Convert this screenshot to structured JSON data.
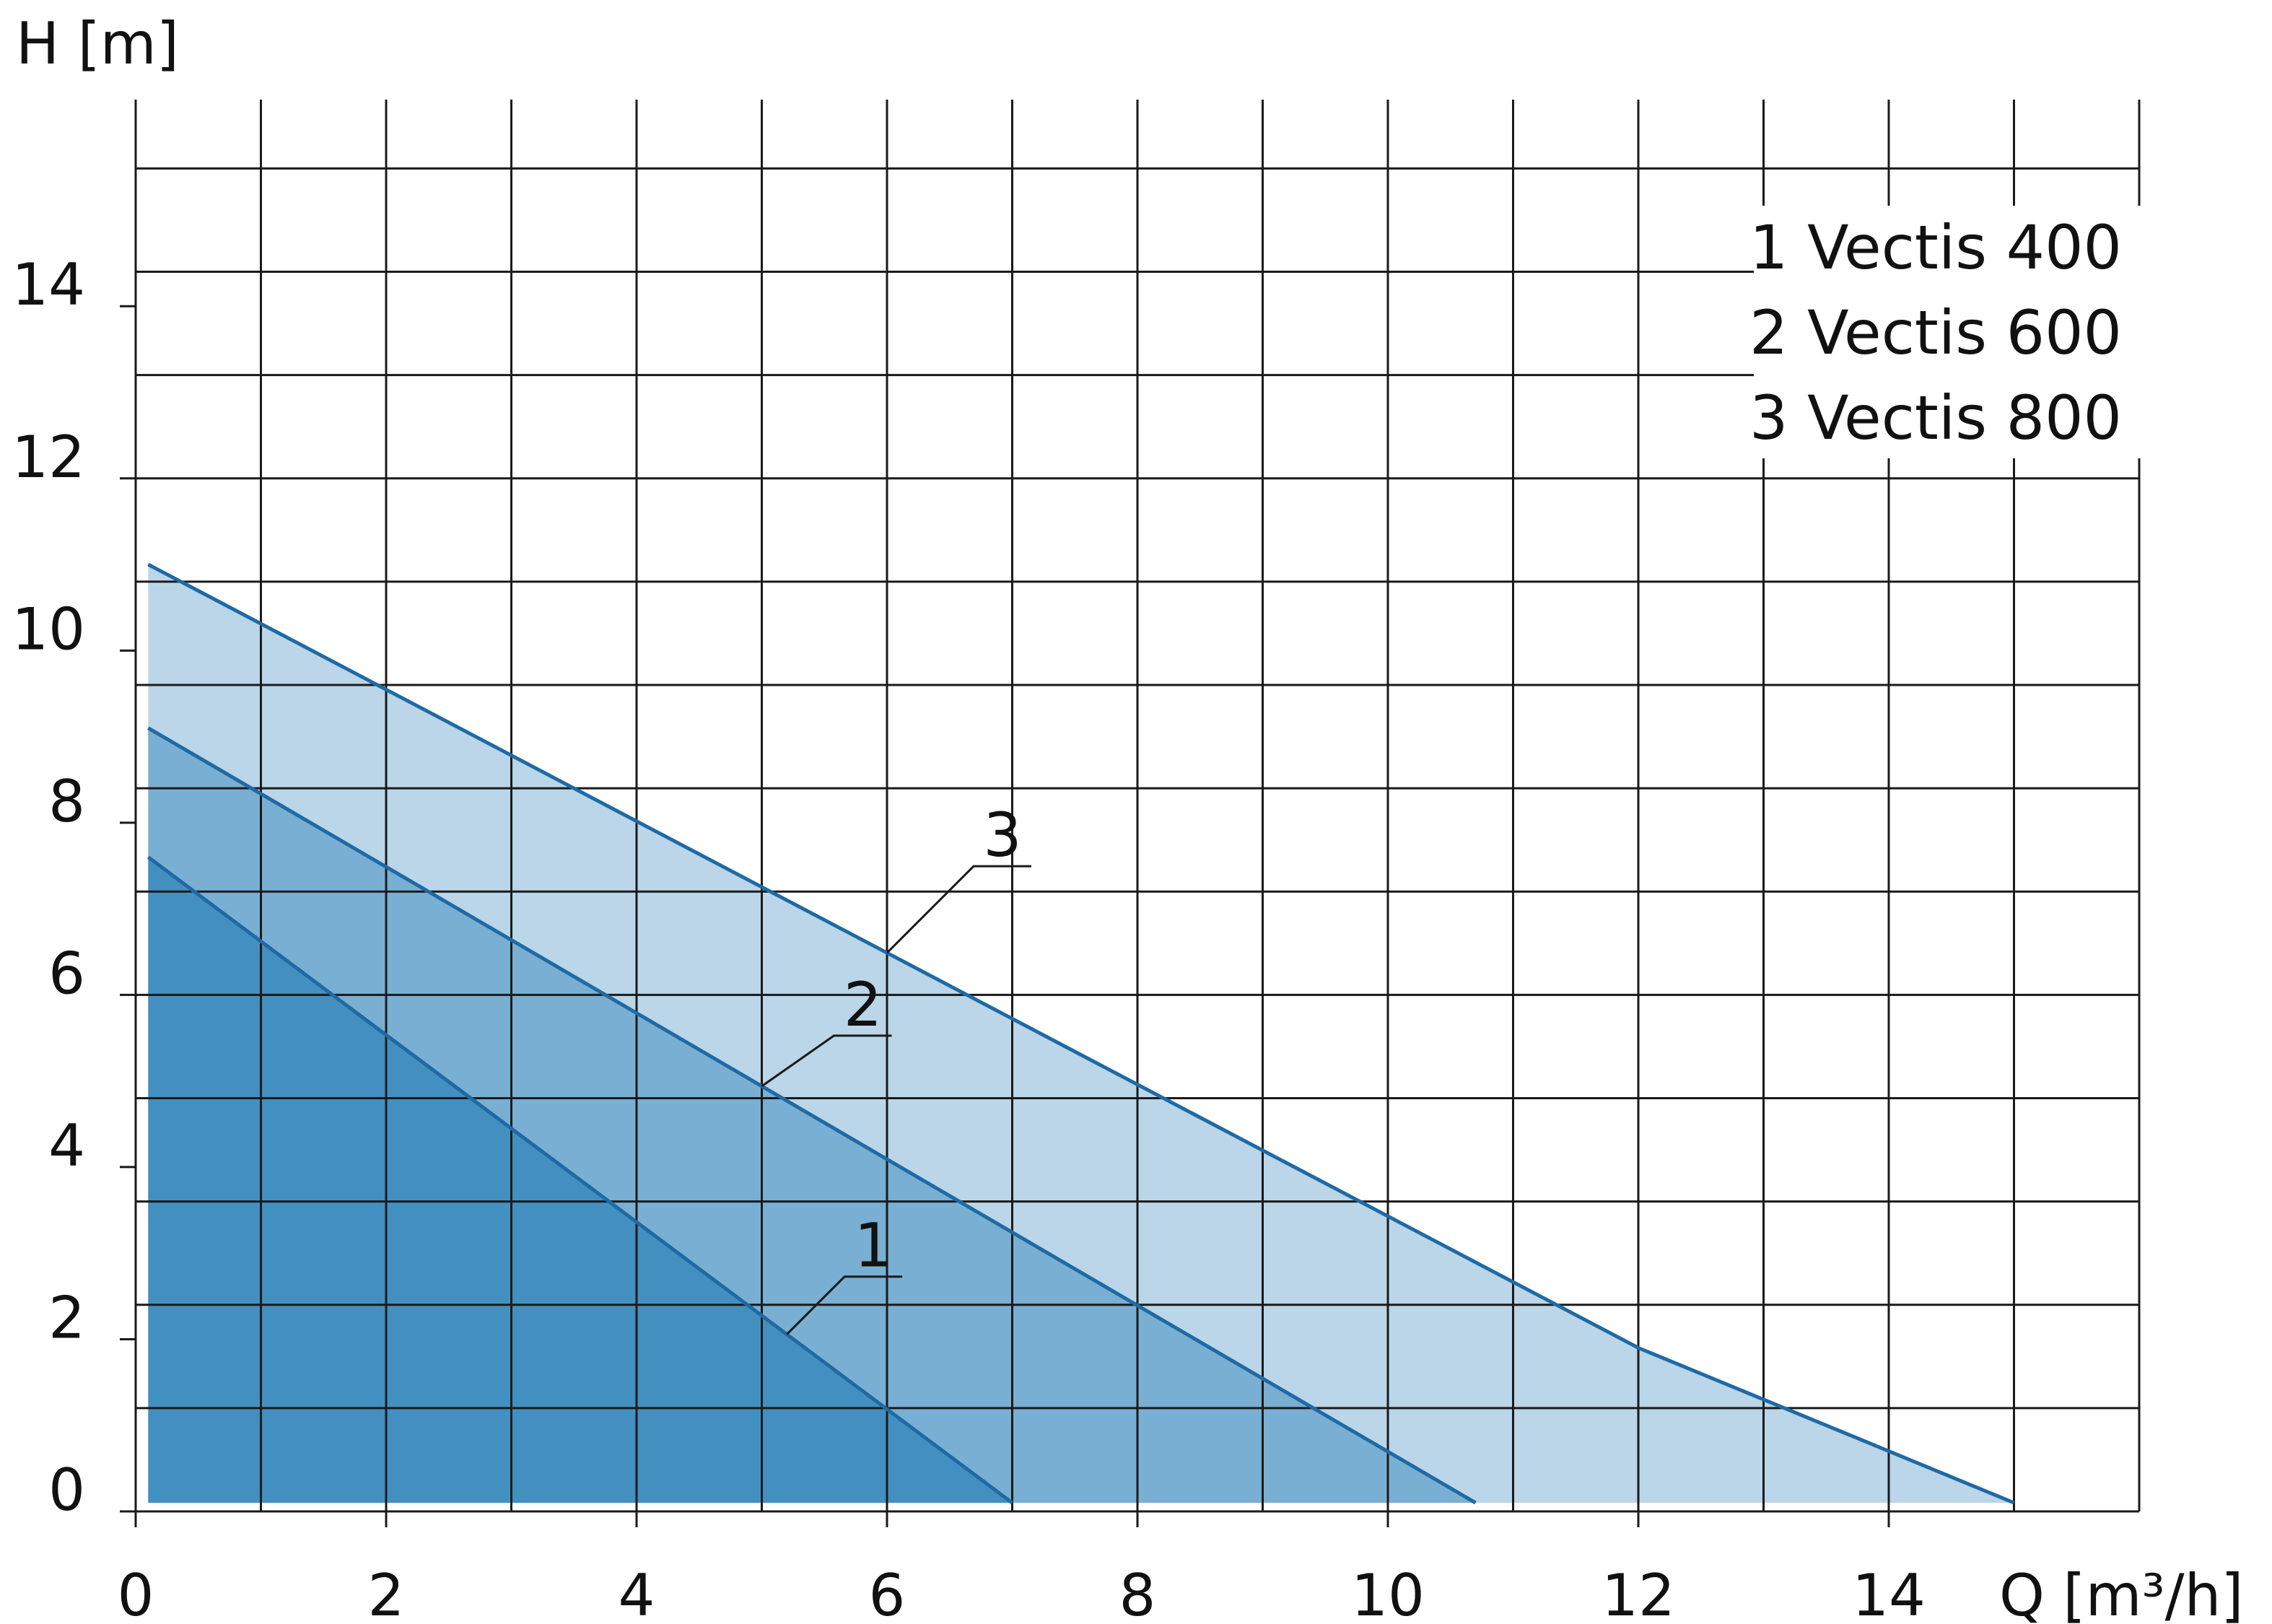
{
  "chart_data": {
    "type": "area",
    "title": "",
    "xlabel": "Q [m³/h]",
    "ylabel": "H [m]",
    "xlim": [
      0,
      16
    ],
    "ylim": [
      0,
      16.4
    ],
    "x_ticks": [
      0,
      2,
      4,
      6,
      8,
      10,
      12,
      14
    ],
    "y_ticks": [
      0,
      2,
      4,
      6,
      8,
      10,
      12,
      14
    ],
    "grid": true,
    "legend_position": "top-right",
    "legend": [
      "1 Vectis 400",
      "2 Vectis 600",
      "3 Vectis 800"
    ],
    "colors": {
      "series1_fill": "#4390c0",
      "series2_fill": "#79afd2",
      "series3_fill": "#bad6e8",
      "curve_line": "#1f6aa5",
      "grid": "#1a1a1a"
    },
    "series": [
      {
        "name": "1",
        "x": [
          0.1,
          7.0
        ],
        "y": [
          7.6,
          0.1
        ]
      },
      {
        "name": "2",
        "x": [
          0.1,
          10.7
        ],
        "y": [
          9.1,
          0.1
        ]
      },
      {
        "name": "3",
        "x": [
          0.1,
          12.0,
          15.0
        ],
        "y": [
          11.0,
          1.9,
          0.1
        ]
      }
    ]
  }
}
